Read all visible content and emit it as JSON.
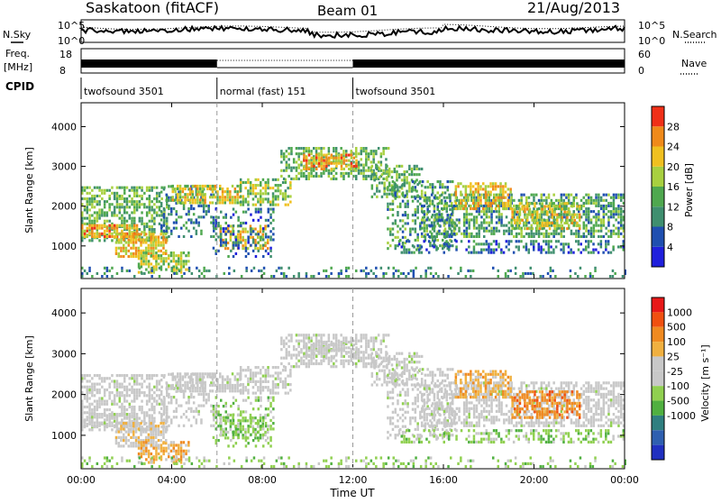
{
  "header": {
    "station": "Saskatoon (fitACF)",
    "beam": "Beam 01",
    "date": "21/Aug/2013"
  },
  "aux_panels": {
    "noise": {
      "left_label": "N.Sky",
      "right_label": "N.Search",
      "left_ticks": [
        "10^5",
        "10^0"
      ],
      "right_ticks": [
        "10^5",
        "10^0"
      ]
    },
    "freq": {
      "left_label_1": "Freq.",
      "left_label_2": "[MHz]",
      "right_label": "Nave",
      "left_ticks": [
        "18",
        "8"
      ],
      "right_ticks": [
        "60",
        "0"
      ]
    },
    "cpid": {
      "label": "CPID",
      "segments": [
        {
          "name": "twofsound 3501",
          "start_h": 0,
          "end_h": 6
        },
        {
          "name": "normal (fast) 151",
          "start_h": 6,
          "end_h": 12
        },
        {
          "name": "twofsound 3501",
          "start_h": 12,
          "end_h": 24
        }
      ]
    }
  },
  "colors": {
    "power": [
      "#1f1fdc",
      "#1f4fb0",
      "#3f8f6f",
      "#4fa84f",
      "#a8d040",
      "#f0c020",
      "#f08a1a",
      "#f03018"
    ],
    "velocity": [
      "#e81818",
      "#f05010",
      "#f08a20",
      "#f0b040",
      "#c8c8c8",
      "#c8c8c8",
      "#90d050",
      "#50b040",
      "#2f7f80",
      "#2f5fb0",
      "#2030c0"
    ]
  },
  "chart_data": [
    {
      "type": "heatmap",
      "name": "power",
      "xlabel": "",
      "ylabel": "Slant Range [km]",
      "x_ticks": [
        "00:00",
        "04:00",
        "08:00",
        "12:00",
        "16:00",
        "20:00",
        "00:00"
      ],
      "y_ticks": [
        "1000",
        "2000",
        "3000",
        "4000"
      ],
      "xlim_hours": [
        0,
        24
      ],
      "ylim_km": [
        180,
        4600
      ],
      "colorbar": {
        "label": "Power [dB]",
        "ticks": [
          "4",
          "8",
          "12",
          "16",
          "20",
          "24",
          "28"
        ],
        "range": [
          0,
          32
        ]
      }
    },
    {
      "type": "heatmap",
      "name": "velocity",
      "xlabel": "Time UT",
      "ylabel": "Slant Range [km]",
      "x_ticks": [
        "00:00",
        "04:00",
        "08:00",
        "12:00",
        "16:00",
        "20:00",
        "00:00"
      ],
      "y_ticks": [
        "1000",
        "2000",
        "3000",
        "4000"
      ],
      "xlim_hours": [
        0,
        24
      ],
      "ylim_km": [
        180,
        4600
      ],
      "colorbar": {
        "label": "Velocity [m s⁻¹]",
        "ticks": [
          "1000",
          "500",
          "100",
          "25",
          "-25",
          "-100",
          "-500",
          "-1000"
        ]
      }
    }
  ]
}
